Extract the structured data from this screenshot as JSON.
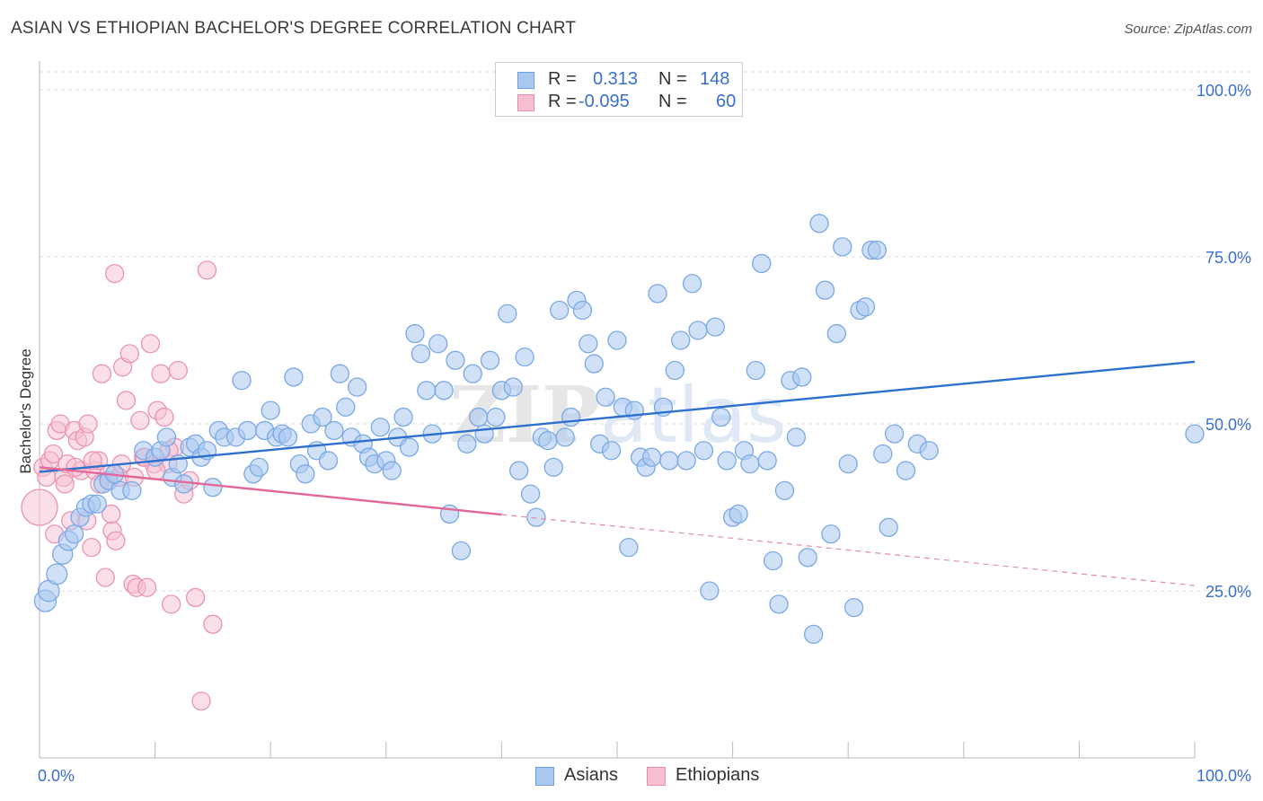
{
  "header": {
    "title": "ASIAN VS ETHIOPIAN BACHELOR'S DEGREE CORRELATION CHART",
    "source": "Source: ZipAtlas.com"
  },
  "watermark": "ZIPatlas",
  "legend": {
    "rows": [
      {
        "r_label": "R =",
        "r_value": "0.313",
        "n_label": "N =",
        "n_value": "148",
        "color": "#a9c8f0",
        "border": "#6f9fe0"
      },
      {
        "r_label": "R =",
        "r_value": "-0.095",
        "n_label": "N =",
        "n_value": "60",
        "color": "#f6bfd0",
        "border": "#e98fae"
      }
    ]
  },
  "bottom_legend": [
    {
      "label": "Asians",
      "color": "#a9c8f0",
      "border": "#6f9fe0"
    },
    {
      "label": "Ethiopians",
      "color": "#f6bfd0",
      "border": "#e98fae"
    }
  ],
  "chart_data": {
    "type": "scatter",
    "title": "ASIAN VS ETHIOPIAN BACHELOR'S DEGREE CORRELATION CHART",
    "xlabel": "",
    "ylabel": "Bachelor's Degree",
    "xlim": [
      0,
      100
    ],
    "ylim": [
      0,
      100
    ],
    "x_tick_labels": [
      {
        "value": 0,
        "label": "0.0%"
      },
      {
        "value": 100,
        "label": "100.0%"
      }
    ],
    "y_tick_labels": [
      {
        "value": 25,
        "label": "25.0%"
      },
      {
        "value": 50,
        "label": "50.0%"
      },
      {
        "value": 75,
        "label": "75.0%"
      },
      {
        "value": 100,
        "label": "100.0%"
      }
    ],
    "grid": true,
    "legend_placement": "top-center",
    "series": [
      {
        "name": "Asians",
        "color": "#7aa8e6",
        "fill": "#a9c8f0",
        "trend": {
          "x0": 0,
          "y0": 42.8,
          "x1": 100,
          "y1": 59.3,
          "dashed_from": null
        },
        "points": [
          [
            0.5,
            23.5
          ],
          [
            0.8,
            25
          ],
          [
            1.5,
            27.5
          ],
          [
            2,
            30.5
          ],
          [
            2.5,
            32.5
          ],
          [
            3,
            33.5
          ],
          [
            3.5,
            36
          ],
          [
            4,
            37.5
          ],
          [
            4.5,
            38
          ],
          [
            5,
            38
          ],
          [
            5.5,
            41
          ],
          [
            6,
            41.5
          ],
          [
            6.5,
            42.5
          ],
          [
            7,
            40
          ],
          [
            8,
            40
          ],
          [
            9,
            46
          ],
          [
            10,
            45
          ],
          [
            10.5,
            46
          ],
          [
            11,
            48
          ],
          [
            11.5,
            42
          ],
          [
            12,
            44
          ],
          [
            12.5,
            41
          ],
          [
            13,
            46.5
          ],
          [
            13.5,
            47
          ],
          [
            14,
            45
          ],
          [
            14.5,
            46
          ],
          [
            15,
            40.5
          ],
          [
            15.5,
            49
          ],
          [
            16,
            48
          ],
          [
            17,
            48
          ],
          [
            17.5,
            56.5
          ],
          [
            18,
            49
          ],
          [
            18.5,
            42.5
          ],
          [
            19,
            43.5
          ],
          [
            19.5,
            49
          ],
          [
            20,
            52
          ],
          [
            20.5,
            48
          ],
          [
            21,
            48.5
          ],
          [
            21.5,
            48
          ],
          [
            22,
            57
          ],
          [
            22.5,
            44
          ],
          [
            23,
            42.5
          ],
          [
            23.5,
            50
          ],
          [
            24,
            46
          ],
          [
            24.5,
            51
          ],
          [
            25,
            44.5
          ],
          [
            25.5,
            49
          ],
          [
            26,
            57.5
          ],
          [
            26.5,
            52.5
          ],
          [
            27,
            48
          ],
          [
            27.5,
            55.5
          ],
          [
            28,
            47
          ],
          [
            28.5,
            45
          ],
          [
            29,
            44
          ],
          [
            29.5,
            49.5
          ],
          [
            30,
            44.5
          ],
          [
            30.5,
            43
          ],
          [
            31,
            48
          ],
          [
            31.5,
            51
          ],
          [
            32,
            46.5
          ],
          [
            32.5,
            63.5
          ],
          [
            33,
            60.5
          ],
          [
            33.5,
            55
          ],
          [
            34,
            48.5
          ],
          [
            34.5,
            62
          ],
          [
            35,
            55
          ],
          [
            35.5,
            36.5
          ],
          [
            36,
            59.5
          ],
          [
            36.5,
            31
          ],
          [
            37,
            47
          ],
          [
            37.5,
            57.5
          ],
          [
            38,
            51
          ],
          [
            38.5,
            48.5
          ],
          [
            39,
            59.5
          ],
          [
            39.5,
            51
          ],
          [
            40,
            55
          ],
          [
            40.5,
            66.5
          ],
          [
            41,
            55.5
          ],
          [
            41.5,
            43
          ],
          [
            42,
            60
          ],
          [
            42.5,
            39.5
          ],
          [
            43,
            36
          ],
          [
            43.5,
            48
          ],
          [
            44,
            47.5
          ],
          [
            44.5,
            43.5
          ],
          [
            45,
            67
          ],
          [
            45.5,
            48
          ],
          [
            46,
            51
          ],
          [
            46.5,
            68.5
          ],
          [
            47,
            67
          ],
          [
            47.5,
            62
          ],
          [
            48,
            59
          ],
          [
            48.5,
            47
          ],
          [
            49,
            54
          ],
          [
            49.5,
            46
          ],
          [
            50,
            62.5
          ],
          [
            50.5,
            52.5
          ],
          [
            51,
            31.5
          ],
          [
            51.5,
            52
          ],
          [
            52,
            45
          ],
          [
            52.5,
            43.5
          ],
          [
            53,
            45
          ],
          [
            53.5,
            69.5
          ],
          [
            54,
            52.5
          ],
          [
            54.5,
            44.5
          ],
          [
            55,
            58
          ],
          [
            55.5,
            62.5
          ],
          [
            56,
            44.5
          ],
          [
            56.5,
            71
          ],
          [
            57,
            64
          ],
          [
            57.5,
            46
          ],
          [
            58,
            25
          ],
          [
            58.5,
            64.5
          ],
          [
            59,
            51
          ],
          [
            59.5,
            44.5
          ],
          [
            60,
            36
          ],
          [
            60.5,
            36.5
          ],
          [
            61,
            46
          ],
          [
            61.5,
            44
          ],
          [
            62,
            58
          ],
          [
            62.5,
            74
          ],
          [
            63,
            44.5
          ],
          [
            63.5,
            29.5
          ],
          [
            64,
            23
          ],
          [
            64.5,
            40
          ],
          [
            65,
            56.5
          ],
          [
            65.5,
            48
          ],
          [
            66,
            57
          ],
          [
            66.5,
            30
          ],
          [
            67,
            18.5
          ],
          [
            67.5,
            80
          ],
          [
            68,
            70
          ],
          [
            68.5,
            33.5
          ],
          [
            69,
            63.5
          ],
          [
            69.5,
            76.5
          ],
          [
            70,
            44
          ],
          [
            70.5,
            22.5
          ],
          [
            71,
            67
          ],
          [
            71.5,
            67.5
          ],
          [
            72,
            76
          ],
          [
            72.5,
            76
          ],
          [
            73,
            45.5
          ],
          [
            73.5,
            34.5
          ],
          [
            74,
            48.5
          ],
          [
            75,
            43
          ],
          [
            76,
            47
          ],
          [
            77,
            46
          ],
          [
            100,
            48.5
          ]
        ]
      },
      {
        "name": "Ethiopians",
        "color": "#ea93b2",
        "fill": "#f6bfd0",
        "trend": {
          "x0": 0,
          "y0": 43.5,
          "x1": 100,
          "y1": 25.8,
          "dashed_from": 40
        },
        "points": [
          [
            0,
            37.5
          ],
          [
            0.3,
            43.5
          ],
          [
            0.6,
            42
          ],
          [
            0.9,
            44.5
          ],
          [
            1.2,
            45.5
          ],
          [
            1.5,
            49
          ],
          [
            1.8,
            50
          ],
          [
            2.1,
            42
          ],
          [
            2.4,
            44
          ],
          [
            2.7,
            35.5
          ],
          [
            3,
            49
          ],
          [
            3.3,
            47.5
          ],
          [
            3.6,
            43
          ],
          [
            3.9,
            48
          ],
          [
            4.2,
            50
          ],
          [
            4.5,
            31.5
          ],
          [
            4.8,
            43
          ],
          [
            5.1,
            44.5
          ],
          [
            5.4,
            57.5
          ],
          [
            5.7,
            27
          ],
          [
            6,
            42.5
          ],
          [
            6.3,
            34
          ],
          [
            6.6,
            32.5
          ],
          [
            6.9,
            42
          ],
          [
            7.2,
            58.5
          ],
          [
            7.5,
            53.5
          ],
          [
            7.8,
            60.5
          ],
          [
            8.1,
            26
          ],
          [
            8.4,
            25.5
          ],
          [
            8.7,
            50.5
          ],
          [
            9,
            45
          ],
          [
            9.3,
            25.5
          ],
          [
            9.6,
            62
          ],
          [
            9.9,
            44
          ],
          [
            10.2,
            52
          ],
          [
            10.5,
            57.5
          ],
          [
            10.8,
            51
          ],
          [
            11.1,
            44
          ],
          [
            11.4,
            23
          ],
          [
            11.7,
            46.5
          ],
          [
            12,
            58
          ],
          [
            12.5,
            39.5
          ],
          [
            13,
            41.5
          ],
          [
            13.5,
            24
          ],
          [
            14,
            8.5
          ],
          [
            14.5,
            73
          ],
          [
            15,
            20
          ],
          [
            1.3,
            33.5
          ],
          [
            2.2,
            41
          ],
          [
            3.1,
            43.5
          ],
          [
            4.1,
            35.5
          ],
          [
            5.2,
            41
          ],
          [
            6.2,
            36.5
          ],
          [
            7.1,
            44
          ],
          [
            8.2,
            42
          ],
          [
            9.1,
            45
          ],
          [
            10.1,
            43
          ],
          [
            11.2,
            46
          ],
          [
            6.5,
            72.5
          ],
          [
            4.6,
            44.5
          ]
        ]
      }
    ]
  }
}
